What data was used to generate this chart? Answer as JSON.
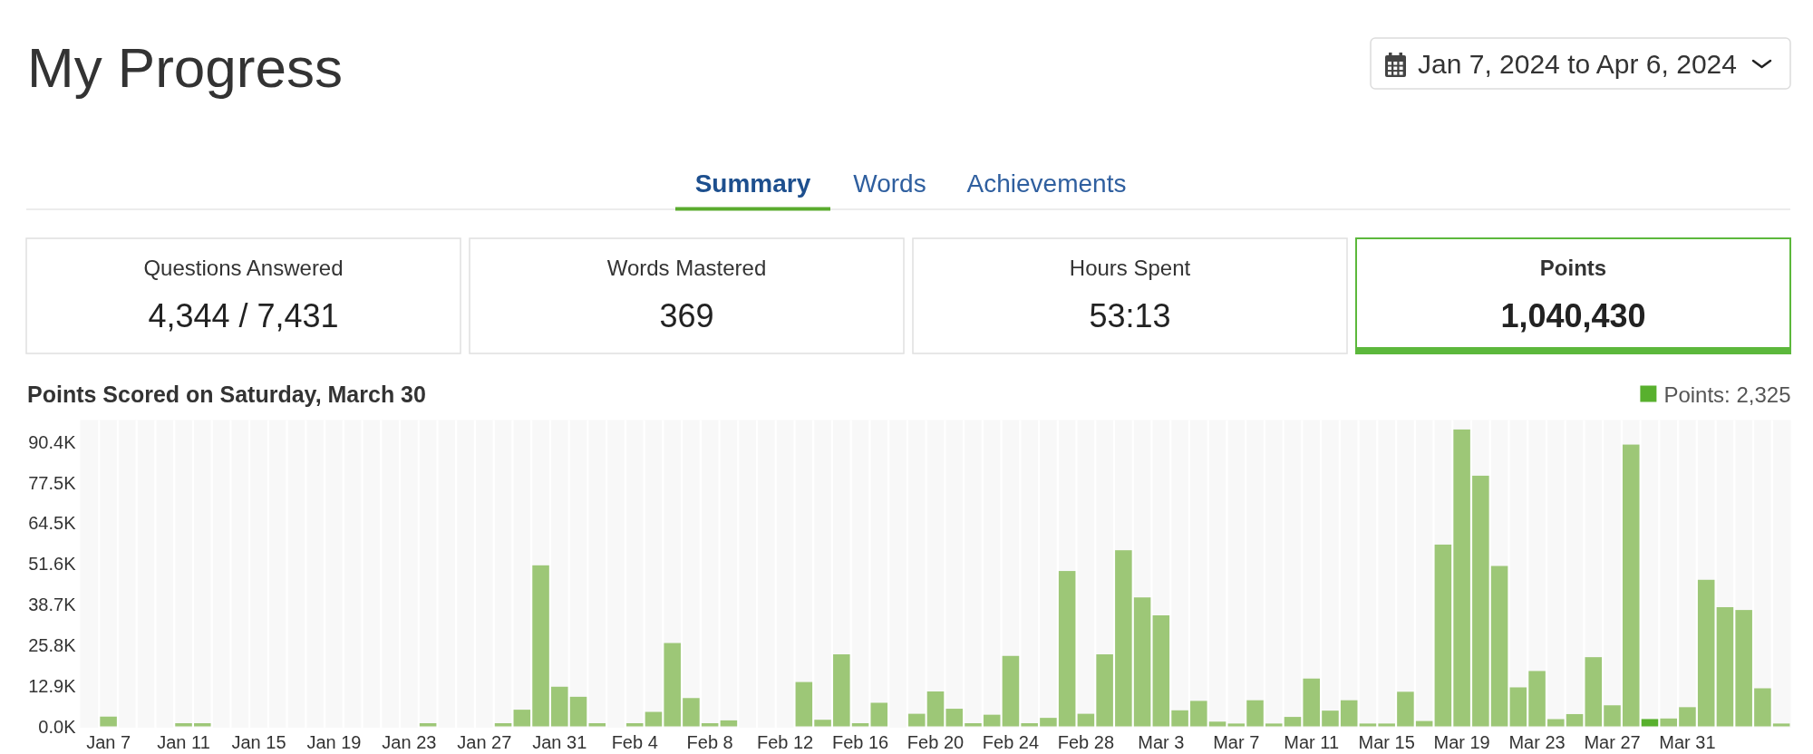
{
  "chart_data": [
    {
      "type": "other",
      "title": "My Progress",
      "annotations": [
        "Jan 7, 2024 to Apr 6, 2024",
        "Summary",
        "Words",
        "Achievements",
        "Questions Answered",
        "4,344 / 7,431",
        "Words Mastered",
        "369",
        "Hours Spent",
        "53:13",
        "Points",
        "1,040,430"
      ]
    },
    {
      "type": "bar",
      "title": "Points Scored on Saturday, March 30",
      "categories": [
        null,
        "Jan 7",
        null,
        null,
        null,
        "Jan 11",
        null,
        null,
        null,
        "Jan 15",
        null,
        null,
        null,
        "Jan 19",
        null,
        null,
        null,
        "Jan 23",
        null,
        null,
        null,
        "Jan 27",
        null,
        null,
        null,
        "Jan 31",
        null,
        null,
        null,
        "Feb 4",
        null,
        null,
        null,
        "Feb 8",
        null,
        null,
        null,
        "Feb 12",
        null,
        null,
        null,
        "Feb 16",
        null,
        null,
        null,
        "Feb 20",
        null,
        null,
        null,
        "Feb 24",
        null,
        null,
        null,
        "Feb 28",
        null,
        null,
        null,
        "Mar 3",
        null,
        null,
        null,
        "Mar 7",
        null,
        null,
        null,
        "Mar 11",
        null,
        null,
        null,
        "Mar 15",
        null,
        null,
        null,
        "Mar 19",
        null,
        null,
        null,
        "Mar 23",
        null,
        null,
        null,
        "Mar 27",
        null,
        null,
        null,
        "Mar 31",
        null,
        null,
        null,
        null,
        null
      ],
      "series": [
        {
          "color": "#9dc777",
          "values": [
            0,
            3100,
            0,
            0,
            0,
            1000,
            1000,
            0,
            0,
            0,
            0,
            0,
            0,
            0,
            0,
            0,
            0,
            0,
            1000,
            0,
            0,
            0,
            1000,
            5300,
            51200,
            12600,
            9400,
            1000,
            0,
            1000,
            4600,
            26500,
            9000,
            1000,
            1900,
            0,
            0,
            0,
            14100,
            2100,
            22900,
            1000,
            7500,
            0,
            4000,
            11100,
            5600,
            1000,
            3700,
            22400,
            1000,
            2700,
            49400,
            4000,
            22900,
            56000,
            41000,
            35300,
            5100,
            8100,
            1500,
            900,
            8300,
            900,
            3000,
            15200,
            5000,
            8300,
            900,
            900,
            11000,
            1700,
            57800,
            94400,
            79700,
            51000,
            12400,
            17600,
            2300,
            3900,
            22000,
            6700,
            89600,
            null,
            2500,
            6100,
            46600,
            37900,
            37000,
            12100,
            900
          ]
        },
        {
          "name": "Points: 2,325",
          "color": "#58b02e",
          "values": [
            null,
            null,
            null,
            null,
            null,
            null,
            null,
            null,
            null,
            null,
            null,
            null,
            null,
            null,
            null,
            null,
            null,
            null,
            null,
            null,
            null,
            null,
            null,
            null,
            null,
            null,
            null,
            null,
            null,
            null,
            null,
            null,
            null,
            null,
            null,
            null,
            null,
            null,
            null,
            null,
            null,
            null,
            null,
            null,
            null,
            null,
            null,
            null,
            null,
            null,
            null,
            null,
            null,
            null,
            null,
            null,
            null,
            null,
            null,
            null,
            null,
            null,
            null,
            null,
            null,
            null,
            null,
            null,
            null,
            null,
            null,
            null,
            null,
            null,
            null,
            null,
            null,
            null,
            null,
            null,
            null,
            null,
            null,
            2325,
            null,
            null,
            null,
            null,
            null,
            null,
            null
          ]
        }
      ],
      "stacked": true,
      "ylim": [
        0,
        97400
      ],
      "yticks": [
        {
          "value": 0,
          "label": "0.0K"
        },
        {
          "value": 12910,
          "label": "12.9K"
        },
        {
          "value": 25820,
          "label": "25.8K"
        },
        {
          "value": 38730,
          "label": "38.7K"
        },
        {
          "value": 51640,
          "label": "51.6K"
        },
        {
          "value": 64550,
          "label": "64.5K"
        },
        {
          "value": 77460,
          "label": "77.5K"
        },
        {
          "value": 90370,
          "label": "90.4K"
        }
      ],
      "grid": "x",
      "legend": "top right"
    }
  ]
}
